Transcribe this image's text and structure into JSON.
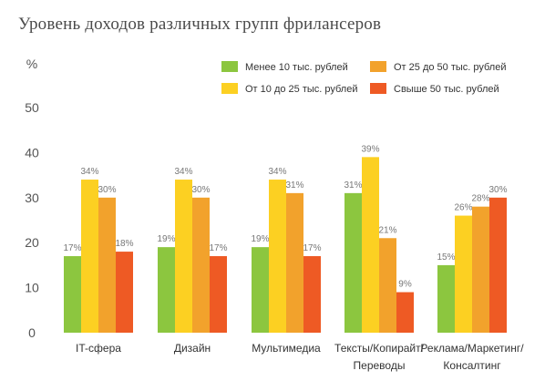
{
  "title": "Уровень доходов различных групп фрилансеров",
  "chart_data": {
    "type": "bar",
    "ylabel": "%",
    "ylim": [
      0,
      50
    ],
    "yticks": [
      0,
      10,
      20,
      30,
      40,
      50
    ],
    "grid": false,
    "legend_position": "top-right",
    "categories": [
      "IT-сфера",
      "Дизайн",
      "Мультимедиа",
      "Тексты/Копирайт/ Переводы",
      "Реклама/Маркетинг/ Консалтинг"
    ],
    "category_lines": [
      [
        "IT-сфера"
      ],
      [
        "Дизайн"
      ],
      [
        "Мультимедиа"
      ],
      [
        "Тексты/Копирайт/",
        "Переводы"
      ],
      [
        "Реклама/Маркетинг/",
        "Консалтинг"
      ]
    ],
    "series": [
      {
        "name": "Менее 10 тыс. рублей",
        "color": "#8cc63f",
        "values": [
          17,
          19,
          19,
          31,
          15
        ],
        "labels": [
          "17%",
          "19%",
          "19%",
          "31%",
          "15%"
        ]
      },
      {
        "name": "От 10 до 25 тыс. рублей",
        "color": "#fcd022",
        "values": [
          34,
          34,
          34,
          39,
          26
        ],
        "labels": [
          "34%",
          "34%",
          "34%",
          "39%",
          "26%"
        ]
      },
      {
        "name": "От 25 до 50 тыс. рублей",
        "color": "#f2a22c",
        "values": [
          30,
          30,
          31,
          21,
          28
        ],
        "labels": [
          "30%",
          "30%",
          "31%",
          "21%",
          "28%"
        ]
      },
      {
        "name": "Свыше 50 тыс. рублей",
        "color": "#ee5a24",
        "values": [
          18,
          17,
          17,
          9,
          30
        ],
        "labels": [
          "18%",
          "17%",
          "17%",
          "9%",
          "30%"
        ]
      }
    ]
  }
}
